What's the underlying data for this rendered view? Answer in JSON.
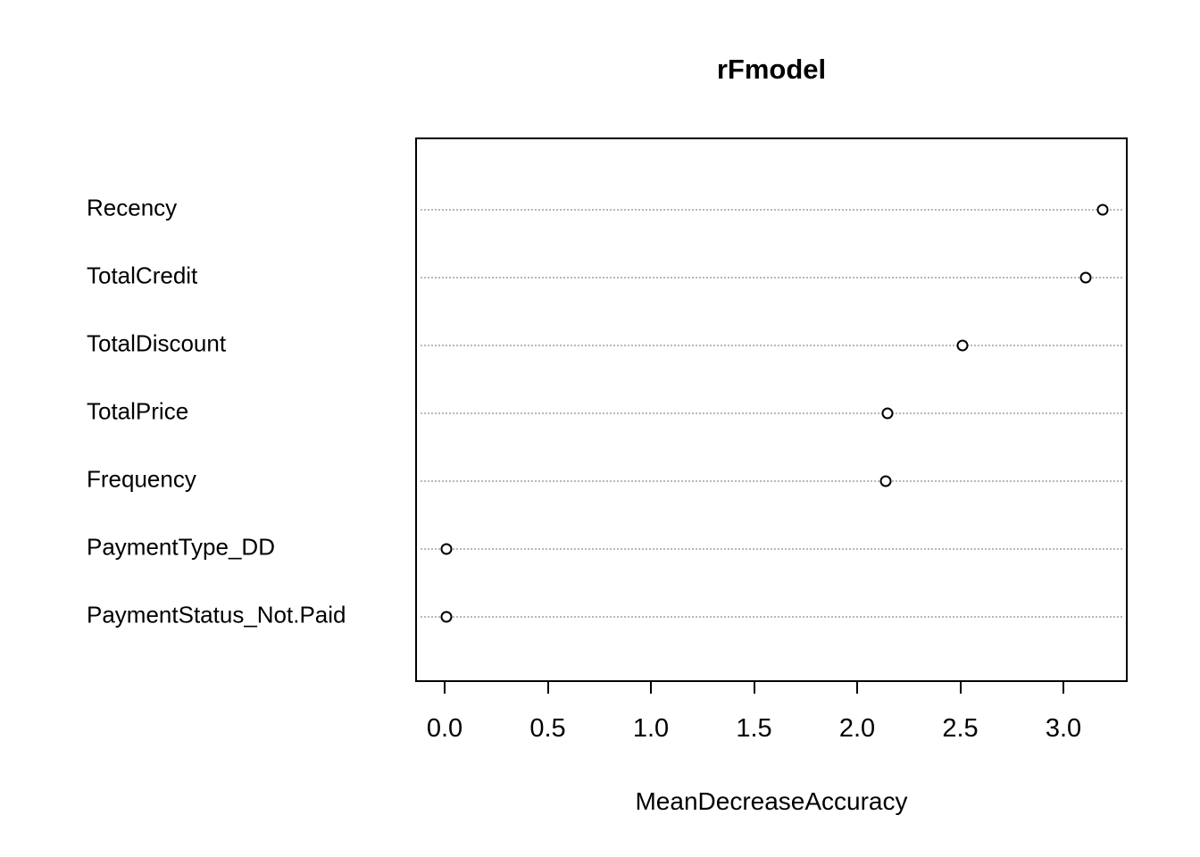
{
  "title": "rFmodel",
  "chart_data": {
    "type": "scatter",
    "subtype": "dotchart-variable-importance",
    "title": "rFmodel",
    "xlabel": "MeanDecreaseAccuracy",
    "ylabel": "",
    "xlim": [
      -0.15,
      3.3
    ],
    "x_ticks": [
      0.0,
      0.5,
      1.0,
      1.5,
      2.0,
      2.5,
      3.0
    ],
    "x_tick_labels": [
      "0.0",
      "0.5",
      "1.0",
      "1.5",
      "2.0",
      "2.5",
      "3.0"
    ],
    "grid": "horizontal dotted",
    "legend": "none",
    "categories": [
      "Recency",
      "TotalCredit",
      "TotalDiscount",
      "TotalPrice",
      "Frequency",
      "PaymentType_DD",
      "PaymentStatus_Not.Paid"
    ],
    "values": [
      3.18,
      3.1,
      2.5,
      2.14,
      2.13,
      0.0,
      0.0
    ],
    "marker": "open-circle",
    "colors": {
      "marker_stroke": "#000000",
      "grid": "#b8b8b8",
      "text": "#000000",
      "background": "#ffffff"
    }
  }
}
